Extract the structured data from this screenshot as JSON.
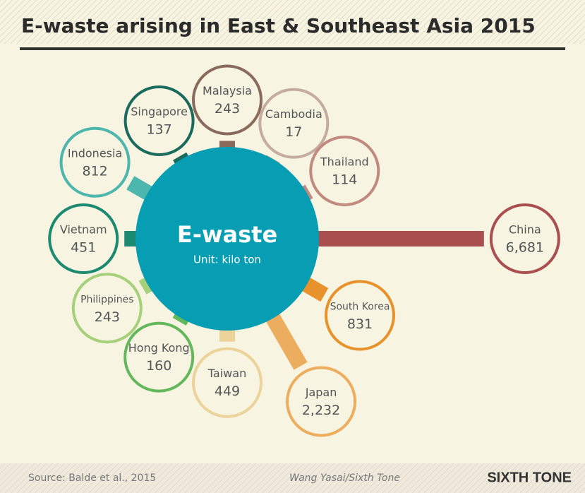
{
  "chart_data": {
    "type": "radial-bar",
    "title": "E-waste arising in East & Southeast Asia 2015",
    "center_label": "E-waste",
    "center_sublabel": "Unit: kilo ton",
    "categories": [
      "China",
      "South Korea",
      "Japan",
      "Taiwan",
      "Hong Kong",
      "Philippines",
      "Vietnam",
      "Indonesia",
      "Singapore",
      "Malaysia",
      "Cambodia",
      "Thailand"
    ],
    "values": [
      6681,
      831,
      2232,
      449,
      160,
      243,
      451,
      812,
      137,
      243,
      17,
      114
    ],
    "value_labels": [
      "6,681",
      "831",
      "2,232",
      "449",
      "160",
      "243",
      "451",
      "812",
      "137",
      "243",
      "17",
      "114"
    ],
    "colors": [
      "#a94f4f",
      "#e8922c",
      "#ecae5e",
      "#ecd39a",
      "#62b85a",
      "#a6d17a",
      "#1b8a70",
      "#4db6ad",
      "#1a6b5e",
      "#8a6a5c",
      "#c4aca1",
      "#c08a7e"
    ],
    "center_color": "#079db3",
    "source": "Source: Balde et al., 2015",
    "credit": "Wang Yasai/Sixth Tone",
    "brand": "SIXTH TONE"
  }
}
